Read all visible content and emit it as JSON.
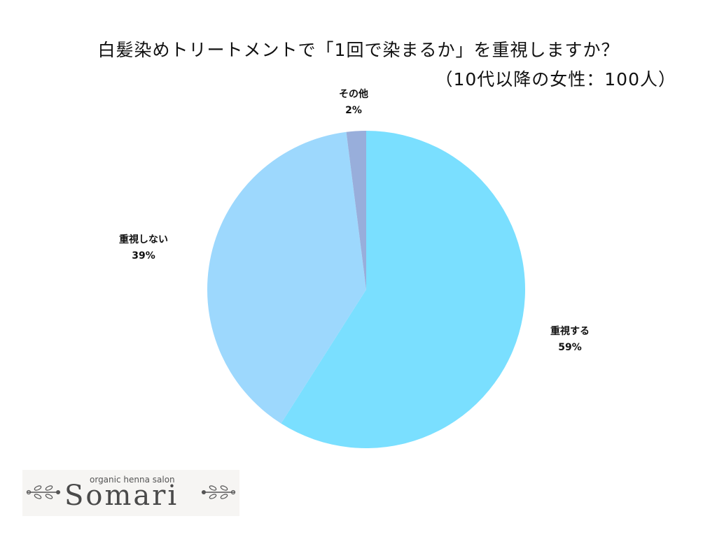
{
  "title": {
    "line1": "白髪染めトリートメントで「1回で染まるか」を重視しますか？",
    "line2": "（10代以降の女性：100人）"
  },
  "chart_data": {
    "type": "pie",
    "start_angle": "12 o'clock",
    "direction": "clockwise",
    "slices": [
      {
        "label": "重視する",
        "value": 59,
        "value_label": "59%",
        "color": "#7adfff"
      },
      {
        "label": "重視しない",
        "value": 39,
        "value_label": "39%",
        "color": "#9dd8fd"
      },
      {
        "label": "その他",
        "value": 2,
        "value_label": "2%",
        "color": "#98aedb"
      }
    ]
  },
  "logo": {
    "subtitle": "organic henna salon",
    "name": "Somari",
    "ornament_icon": "leaf-branch-icon"
  }
}
